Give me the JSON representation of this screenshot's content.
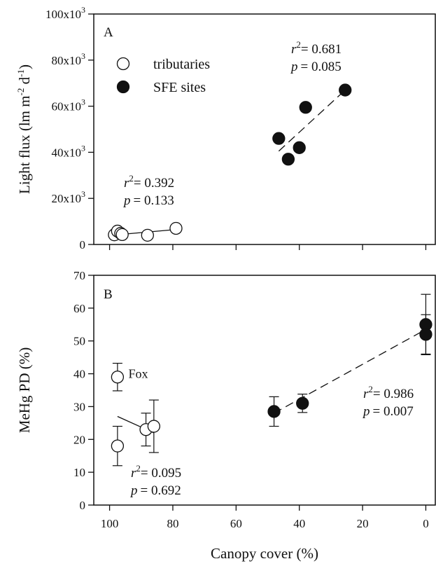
{
  "chart_data": [
    {
      "type": "scatter",
      "panel_label": "A",
      "title": "",
      "xlabel": "",
      "ylabel": "Light flux (lm m-2 d-1)",
      "ylabel_parts": {
        "main": "Light flux (lm m",
        "e1": "-2",
        "mid": " d",
        "e2": "-1",
        "end": ")"
      },
      "xlim": [
        105,
        -3
      ],
      "ylim": [
        0,
        100000
      ],
      "x_reversed": true,
      "x_ticks": [
        100,
        80,
        60,
        40,
        20,
        0
      ],
      "y_ticks": [
        {
          "value": 0,
          "label": "0",
          "exp": ""
        },
        {
          "value": 20000,
          "label": "20x10",
          "exp": "3"
        },
        {
          "value": 40000,
          "label": "40x10",
          "exp": "3"
        },
        {
          "value": 60000,
          "label": "60x10",
          "exp": "3"
        },
        {
          "value": 80000,
          "label": "80x10",
          "exp": "3"
        },
        {
          "value": 100000,
          "label": "100x10",
          "exp": "3"
        }
      ],
      "legend": {
        "placement": "top-left",
        "entries": [
          {
            "name": "tributaries",
            "marker": "open-circle"
          },
          {
            "name": "SFE sites",
            "marker": "filled-circle"
          }
        ]
      },
      "series": [
        {
          "name": "tributaries",
          "marker": "open-circle",
          "points": [
            {
              "x": 98.5,
              "y": 4200
            },
            {
              "x": 97.5,
              "y": 5800
            },
            {
              "x": 96.5,
              "y": 4800
            },
            {
              "x": 96,
              "y": 4300
            },
            {
              "x": 88,
              "y": 4000
            },
            {
              "x": 79,
              "y": 7000
            }
          ],
          "fit": {
            "x": [
              97,
              79
            ],
            "y": [
              4300,
              6500
            ],
            "style": "solid"
          },
          "stats": {
            "r2_prefix": "r",
            "r2_exp": "2",
            "r2_value": "= 0.392",
            "p_prefix": "p",
            "p_value": "= 0.133"
          }
        },
        {
          "name": "SFE sites",
          "marker": "filled-circle",
          "points": [
            {
              "x": 46.5,
              "y": 46000
            },
            {
              "x": 43.5,
              "y": 37000
            },
            {
              "x": 40,
              "y": 42000
            },
            {
              "x": 38,
              "y": 59500
            },
            {
              "x": 25.5,
              "y": 67000
            }
          ],
          "fit": {
            "x": [
              46.5,
              25.5
            ],
            "y": [
              40500,
              67000
            ],
            "style": "dashed"
          },
          "stats": {
            "r2_prefix": "r",
            "r2_exp": "2",
            "r2_value": "= 0.681",
            "p_prefix": "p",
            "p_value": "= 0.085"
          }
        }
      ]
    },
    {
      "type": "scatter",
      "panel_label": "B",
      "title": "",
      "xlabel": "Canopy cover (%)",
      "ylabel": "MeHg PD (%)",
      "xlim": [
        105,
        -3
      ],
      "ylim": [
        0,
        70
      ],
      "x_reversed": true,
      "x_ticks": [
        100,
        80,
        60,
        40,
        20,
        0
      ],
      "y_ticks": [
        0,
        10,
        20,
        30,
        40,
        50,
        60,
        70
      ],
      "annotations": [
        {
          "text": "Fox",
          "x": 94.5,
          "y": 40
        }
      ],
      "series": [
        {
          "name": "tributaries",
          "marker": "open-circle",
          "points": [
            {
              "x": 97.5,
              "y": 39,
              "err": 4.2
            },
            {
              "x": 97.5,
              "y": 18,
              "err": 6
            },
            {
              "x": 88.5,
              "y": 23,
              "err": 5
            },
            {
              "x": 86,
              "y": 24,
              "err": 8
            }
          ],
          "fit": {
            "x": [
              97.5,
              86
            ],
            "y": [
              27,
              22
            ],
            "style": "solid"
          },
          "stats": {
            "r2_prefix": "r",
            "r2_exp": "2",
            "r2_value": "= 0.095",
            "p_prefix": "p",
            "p_value": "= 0.692"
          }
        },
        {
          "name": "SFE sites",
          "marker": "filled-circle",
          "points": [
            {
              "x": 48,
              "y": 28.5,
              "err": 4.5
            },
            {
              "x": 39,
              "y": 31,
              "err": 2.8
            },
            {
              "x": 0,
              "y": 55,
              "err": 9.2
            },
            {
              "x": 0,
              "y": 52,
              "err": 6
            }
          ],
          "fit": {
            "x": [
              48,
              0
            ],
            "y": [
              28,
              53.5
            ],
            "style": "dashed"
          },
          "stats": {
            "r2_prefix": "r",
            "r2_exp": "2",
            "r2_value": "= 0.986",
            "p_prefix": "p",
            "p_value": "= 0.007"
          }
        }
      ]
    }
  ]
}
